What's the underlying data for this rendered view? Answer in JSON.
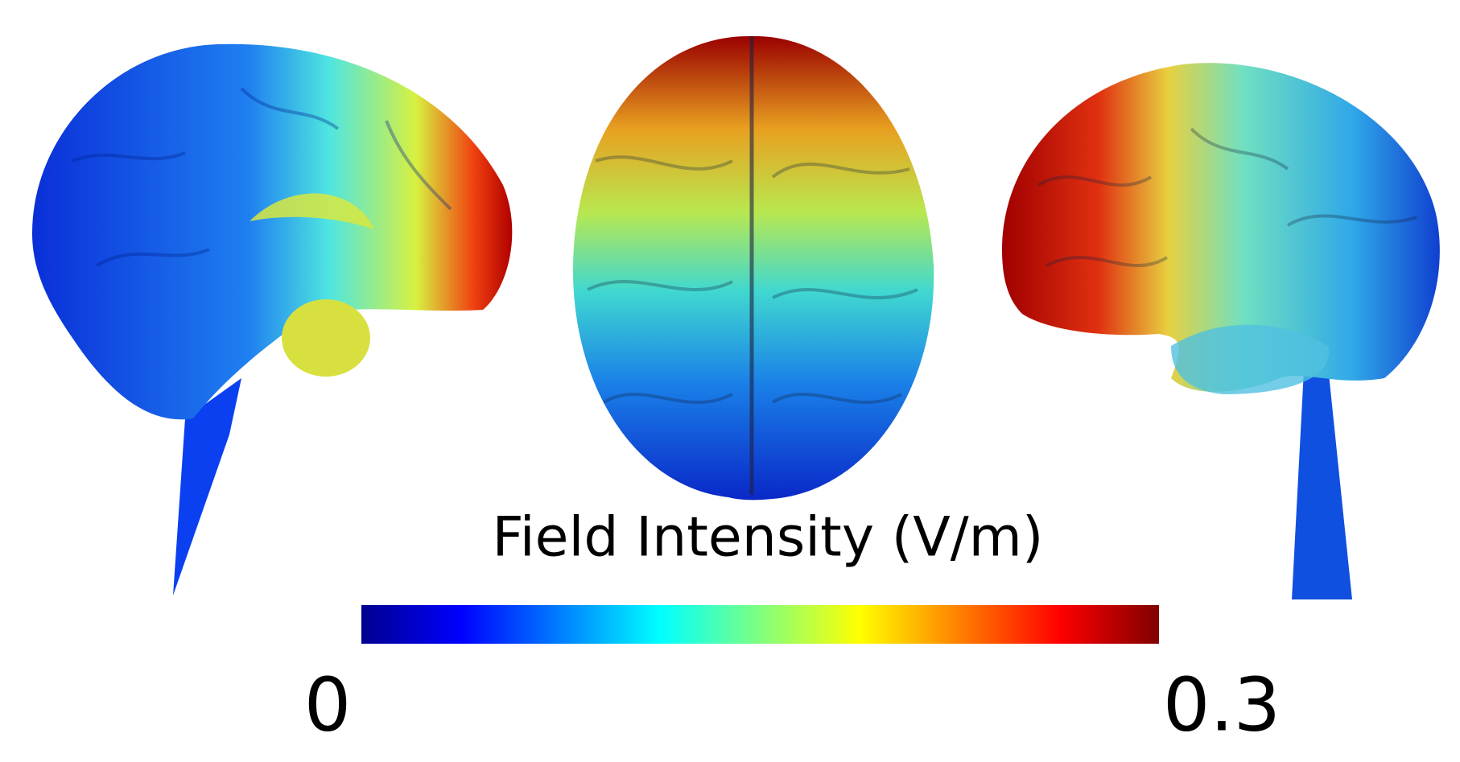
{
  "colorbar": {
    "title": "Field Intensity (V/m)",
    "min": 0,
    "max": 0.3
  }
}
